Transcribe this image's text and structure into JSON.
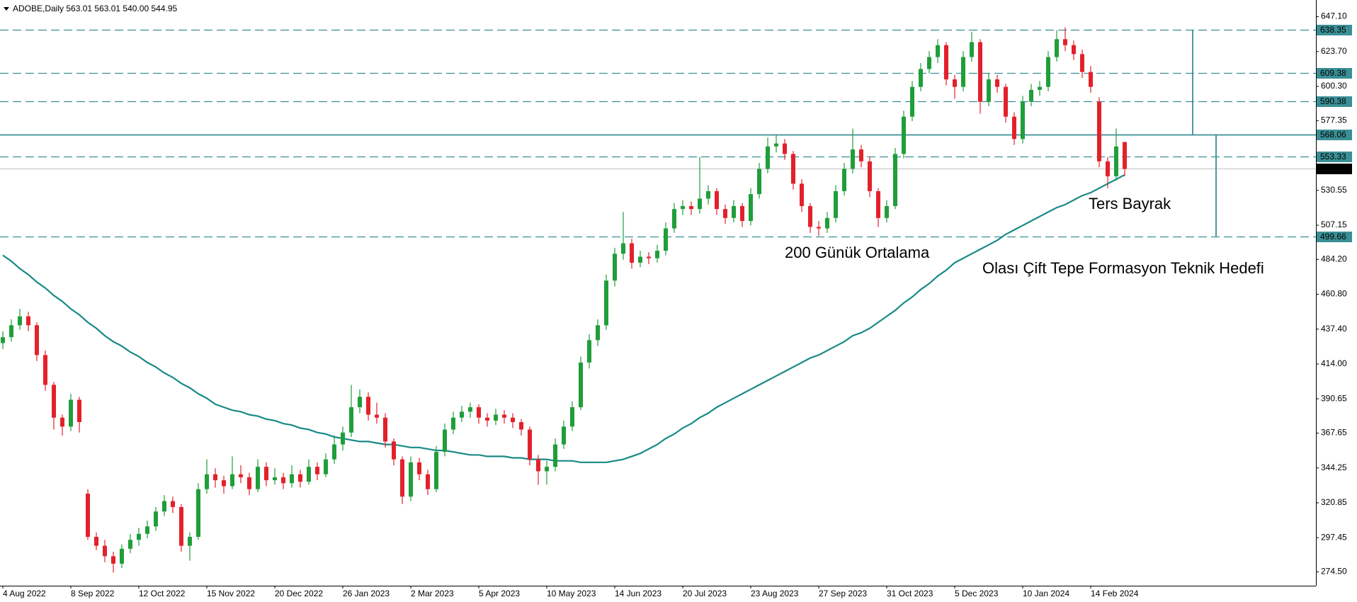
{
  "chart_data": {
    "type": "candlestick",
    "title": "ADOBE,Daily 563.01 563.01 540.00 544.95",
    "ylim": [
      265.2,
      656.4
    ],
    "yticks": [
      {
        "value": 274.5,
        "label": "274.50"
      },
      297.45,
      320.85,
      344.25,
      367.65,
      390.65,
      {
        "value": 414,
        "label": "414.00"
      },
      {
        "value": 437.4,
        "label": "437.40"
      },
      {
        "value": 460.8,
        "label": "460.80"
      },
      {
        "value": 484.2,
        "label": "484.20"
      },
      507.15,
      530.55,
      577.35,
      {
        "value": 600.3,
        "label": "600.30"
      },
      {
        "value": 623.7,
        "label": "623.70"
      },
      {
        "value": 647.1,
        "label": "647.10"
      }
    ],
    "categories": [
      "4 Aug 2022",
      null,
      null,
      null,
      null,
      null,
      null,
      null,
      "8 Sep 2022",
      null,
      null,
      null,
      null,
      null,
      null,
      null,
      "12 Oct 2022",
      null,
      null,
      null,
      null,
      null,
      null,
      null,
      "15 Nov 2022",
      null,
      null,
      null,
      null,
      null,
      null,
      null,
      "20 Dec 2022",
      null,
      null,
      null,
      null,
      null,
      null,
      null,
      "26 Jan 2023",
      null,
      null,
      null,
      null,
      null,
      null,
      null,
      "2 Mar 2023",
      null,
      null,
      null,
      null,
      null,
      null,
      null,
      "5 Apr 2023",
      null,
      null,
      null,
      null,
      null,
      null,
      null,
      "10 May 2023",
      null,
      null,
      null,
      null,
      null,
      null,
      null,
      "14 Jun 2023",
      null,
      null,
      null,
      null,
      null,
      null,
      null,
      "20 Jul 2023",
      null,
      null,
      null,
      null,
      null,
      null,
      null,
      "23 Aug 2023",
      null,
      null,
      null,
      null,
      null,
      null,
      null,
      "27 Sep 2023",
      null,
      null,
      null,
      null,
      null,
      null,
      null,
      "31 Oct 2023",
      null,
      null,
      null,
      null,
      null,
      null,
      null,
      "5 Dec 2023",
      null,
      null,
      null,
      null,
      null,
      null,
      null,
      "10 Jan 2024",
      null,
      null,
      null,
      null,
      null,
      null,
      null,
      "14 Feb 2024",
      null,
      null,
      null,
      null
    ],
    "up_color": "#1f9e3a",
    "down_color": "#e3212b",
    "candles": [
      [
        428,
        436,
        424,
        432
      ],
      [
        432,
        444,
        429,
        440
      ],
      [
        440,
        451,
        437,
        446
      ],
      [
        446,
        449,
        436,
        440
      ],
      [
        440,
        442,
        416,
        420
      ],
      [
        420,
        423,
        396,
        400
      ],
      [
        400,
        402,
        370,
        378
      ],
      [
        378,
        380,
        366,
        372
      ],
      [
        372,
        394,
        369,
        390
      ],
      [
        390,
        392,
        368,
        375
      ],
      [
        327,
        330,
        296,
        298
      ],
      [
        298,
        301,
        289,
        292
      ],
      [
        292,
        296,
        281,
        285
      ],
      [
        285,
        288,
        274,
        280
      ],
      [
        280,
        293,
        277,
        290
      ],
      [
        290,
        300,
        287,
        296
      ],
      [
        296,
        304,
        292,
        300
      ],
      [
        300,
        309,
        297,
        305
      ],
      [
        305,
        318,
        302,
        315
      ],
      [
        315,
        326,
        312,
        322
      ],
      [
        322,
        325,
        314,
        318
      ],
      [
        318,
        320,
        288,
        292
      ],
      [
        292,
        301,
        282,
        298
      ],
      [
        298,
        334,
        296,
        330
      ],
      [
        330,
        350,
        327,
        340
      ],
      [
        340,
        344,
        331,
        336
      ],
      [
        336,
        339,
        327,
        332
      ],
      [
        332,
        352,
        330,
        340
      ],
      [
        340,
        346,
        334,
        338
      ],
      [
        338,
        341,
        326,
        330
      ],
      [
        330,
        350,
        328,
        345
      ],
      [
        345,
        348,
        332,
        336
      ],
      [
        336,
        344,
        333,
        338
      ],
      [
        338,
        341,
        330,
        334
      ],
      [
        334,
        346,
        331,
        340
      ],
      [
        340,
        343,
        331,
        335
      ],
      [
        335,
        350,
        333,
        345
      ],
      [
        345,
        348,
        336,
        340
      ],
      [
        340,
        354,
        338,
        350
      ],
      [
        350,
        366,
        347,
        360
      ],
      [
        360,
        372,
        356,
        368
      ],
      [
        368,
        400,
        365,
        385
      ],
      [
        385,
        397,
        381,
        392
      ],
      [
        392,
        395,
        376,
        380
      ],
      [
        380,
        388,
        374,
        378
      ],
      [
        378,
        381,
        358,
        362
      ],
      [
        362,
        364,
        346,
        350
      ],
      [
        350,
        352,
        320,
        325
      ],
      [
        325,
        352,
        322,
        348
      ],
      [
        348,
        351,
        336,
        340
      ],
      [
        340,
        343,
        326,
        330
      ],
      [
        330,
        359,
        328,
        355
      ],
      [
        355,
        374,
        352,
        370
      ],
      [
        370,
        382,
        367,
        378
      ],
      [
        378,
        386,
        375,
        382
      ],
      [
        382,
        388,
        378,
        385
      ],
      [
        385,
        387,
        374,
        378
      ],
      [
        378,
        381,
        372,
        376
      ],
      [
        376,
        384,
        373,
        380
      ],
      [
        380,
        383,
        374,
        378
      ],
      [
        378,
        381,
        371,
        375
      ],
      [
        375,
        377,
        366,
        370
      ],
      [
        370,
        372,
        346,
        350
      ],
      [
        350,
        353,
        333,
        342
      ],
      [
        342,
        349,
        333,
        345
      ],
      [
        345,
        364,
        342,
        360
      ],
      [
        360,
        376,
        357,
        372
      ],
      [
        372,
        389,
        369,
        385
      ],
      [
        385,
        419,
        383,
        415
      ],
      [
        415,
        434,
        411,
        430
      ],
      [
        430,
        444,
        426,
        440
      ],
      [
        440,
        474,
        437,
        470
      ],
      [
        470,
        492,
        466,
        488
      ],
      [
        488,
        516,
        484,
        495
      ],
      [
        495,
        498,
        478,
        482
      ],
      [
        482,
        490,
        479,
        486
      ],
      [
        486,
        489,
        481,
        485
      ],
      [
        485,
        494,
        482,
        490
      ],
      [
        490,
        509,
        487,
        505
      ],
      [
        505,
        522,
        502,
        518
      ],
      [
        518,
        524,
        514,
        520
      ],
      [
        520,
        523,
        514,
        518
      ],
      [
        518,
        553,
        515,
        525
      ],
      [
        525,
        534,
        521,
        530
      ],
      [
        530,
        532,
        514,
        518
      ],
      [
        518,
        521,
        508,
        512
      ],
      [
        512,
        524,
        509,
        520
      ],
      [
        520,
        522,
        506,
        510
      ],
      [
        510,
        532,
        507,
        528
      ],
      [
        528,
        549,
        525,
        545
      ],
      [
        545,
        566,
        542,
        560
      ],
      [
        560,
        568,
        556,
        562
      ],
      [
        562,
        565,
        551,
        555
      ],
      [
        555,
        557,
        531,
        535
      ],
      [
        535,
        538,
        516,
        520
      ],
      [
        520,
        522,
        502,
        506
      ],
      [
        506,
        510,
        500,
        505
      ],
      [
        505,
        516,
        502,
        512
      ],
      [
        512,
        534,
        509,
        530
      ],
      [
        530,
        549,
        527,
        545
      ],
      [
        545,
        572,
        542,
        558
      ],
      [
        558,
        561,
        546,
        550
      ],
      [
        550,
        553,
        526,
        530
      ],
      [
        530,
        532,
        506,
        512
      ],
      [
        512,
        524,
        509,
        520
      ],
      [
        520,
        559,
        518,
        555
      ],
      [
        555,
        584,
        552,
        580
      ],
      [
        580,
        604,
        577,
        600
      ],
      [
        600,
        616,
        597,
        612
      ],
      [
        612,
        624,
        609,
        620
      ],
      [
        620,
        632,
        616,
        628
      ],
      [
        628,
        630,
        601,
        605
      ],
      [
        605,
        608,
        592,
        600
      ],
      [
        600,
        624,
        597,
        620
      ],
      [
        620,
        637,
        617,
        630
      ],
      [
        630,
        632,
        582,
        590
      ],
      [
        590,
        609,
        587,
        605
      ],
      [
        605,
        608,
        596,
        600
      ],
      [
        600,
        602,
        576,
        580
      ],
      [
        580,
        583,
        561,
        565
      ],
      [
        565,
        594,
        562,
        590
      ],
      [
        590,
        602,
        587,
        598
      ],
      [
        598,
        604,
        594,
        600
      ],
      [
        600,
        624,
        597,
        620
      ],
      [
        620,
        638,
        617,
        632
      ],
      [
        632,
        640,
        624,
        628
      ],
      [
        628,
        631,
        618,
        622
      ],
      [
        622,
        625,
        606,
        610
      ],
      [
        610,
        614,
        596,
        600
      ],
      [
        590,
        593,
        546,
        550
      ],
      [
        550,
        553,
        532,
        540
      ],
      [
        540,
        572,
        537,
        560
      ],
      [
        563.01,
        563.01,
        540,
        544.95
      ]
    ],
    "series": [
      {
        "name": "200 Günük Ortalama",
        "color": "#178a87",
        "values": [
          487,
          483,
          478,
          474,
          469,
          465,
          460,
          456,
          451,
          447,
          442,
          438,
          433,
          429,
          426,
          422,
          419,
          415,
          412,
          408,
          405,
          401,
          398,
          394,
          391,
          387,
          385,
          383,
          382,
          380,
          379,
          377,
          376,
          374,
          373,
          371,
          370,
          368,
          367,
          365,
          364,
          363,
          362,
          362,
          361,
          360,
          360,
          359,
          358,
          358,
          357,
          356,
          356,
          355,
          354,
          353,
          353,
          352,
          352,
          352,
          351,
          351,
          350,
          350,
          350,
          349,
          349,
          349,
          348,
          348,
          348,
          348,
          349,
          350,
          352,
          354,
          357,
          360,
          364,
          367,
          371,
          374,
          378,
          381,
          385,
          388,
          391,
          394,
          397,
          400,
          403,
          406,
          409,
          412,
          415,
          418,
          420,
          423,
          426,
          429,
          433,
          435,
          438,
          442,
          446,
          450,
          455,
          459,
          464,
          468,
          473,
          477,
          482,
          485,
          488,
          491,
          494,
          497,
          501,
          504,
          507,
          510,
          513,
          516,
          519,
          521,
          524,
          527,
          529,
          532,
          535,
          538,
          541
        ]
      }
    ],
    "level_color": "#3a8f95",
    "levels": [
      {
        "value": 638.35,
        "style": "dashed"
      },
      {
        "value": 609.38,
        "style": "dashed"
      },
      {
        "value": 590.38,
        "style": "dashed"
      },
      {
        "value": 568.06,
        "style": "solid"
      },
      {
        "value": 553.33,
        "style": "dashed"
      },
      {
        "value": 544.95,
        "style": "current"
      },
      {
        "value": 499.66,
        "style": "dashed"
      }
    ],
    "annotations": [
      {
        "text": "Olası Çift Tepe Formasyon Teknik Hedefi",
        "color": "#e81818"
      },
      {
        "text": "Ters Bayrak",
        "color": "#c4168f"
      }
    ]
  }
}
